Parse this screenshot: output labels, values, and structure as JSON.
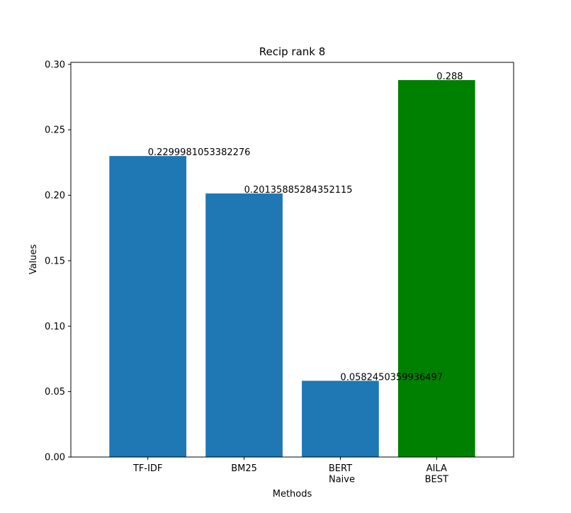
{
  "chart_data": {
    "type": "bar",
    "title": "Recip rank 8",
    "xlabel": "Methods",
    "ylabel": "Values",
    "categories": [
      [
        "TF-IDF"
      ],
      [
        "BM25"
      ],
      [
        "BERT",
        " Naive"
      ],
      [
        "AILA",
        "BEST"
      ]
    ],
    "values": [
      0.2299981053382276,
      0.20135885284352115,
      0.0582450359936497,
      0.288
    ],
    "value_labels": [
      "0.2299981053382276",
      "0.20135885284352115",
      "0.0582450359936497",
      "0.288"
    ],
    "bar_colors": [
      "#1f77b4",
      "#1f77b4",
      "#1f77b4",
      "#008000"
    ],
    "ylim": [
      0,
      0.3
    ],
    "yticks": [
      0.0,
      0.05,
      0.1,
      0.15,
      0.2,
      0.25,
      0.3
    ],
    "ytick_labels": [
      "0.00",
      "0.05",
      "0.10",
      "0.15",
      "0.20",
      "0.25",
      "0.30"
    ],
    "grid": false,
    "legend": "none"
  }
}
